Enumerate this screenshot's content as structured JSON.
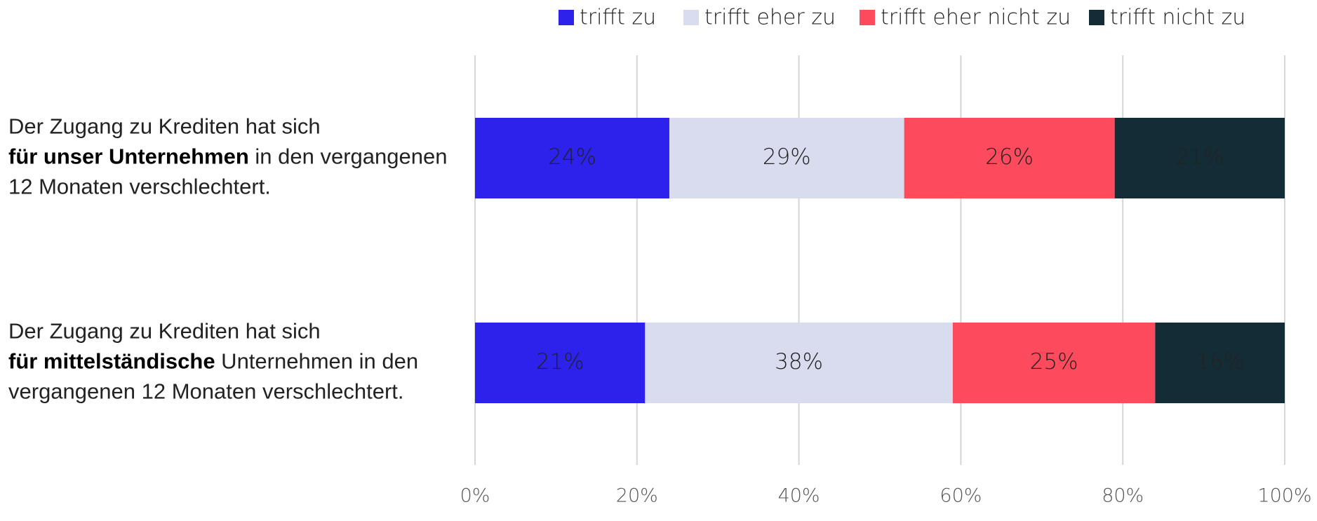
{
  "chart_data": {
    "type": "stacked_barh",
    "categories": [
      [
        [
          {
            "text": "Der Zugang zu Krediten hat sich"
          }
        ],
        [
          {
            "text": "für unser Unternehmen",
            "bold": true
          },
          {
            "text": " in den vergangenen"
          }
        ],
        [
          {
            "text": "12 Monaten verschlechtert."
          }
        ]
      ],
      [
        [
          {
            "text": "Der Zugang zu Krediten hat sich"
          }
        ],
        [
          {
            "text": "für mittelständische",
            "bold": true
          },
          {
            "text": " Unternehmen in den"
          }
        ],
        [
          {
            "text": "vergangenen 12 Monaten verschlechtert."
          }
        ]
      ]
    ],
    "series": [
      {
        "name": "trifft zu",
        "color": "#2c22eb",
        "values": [
          24,
          21
        ],
        "value_labels": [
          "24%",
          "21%"
        ]
      },
      {
        "name": "trifft eher zu",
        "color": "#d8dcee",
        "values": [
          29,
          38
        ],
        "value_labels": [
          "29%",
          "38%"
        ]
      },
      {
        "name": "trifft eher nicht zu",
        "color": "#fd4a5c",
        "values": [
          26,
          25
        ],
        "value_labels": [
          "26%",
          "25%"
        ]
      },
      {
        "name": "trifft nicht zu",
        "color": "#132c36",
        "values": [
          21,
          16
        ],
        "value_labels": [
          "21%",
          "16%"
        ]
      }
    ],
    "xlim": [
      0,
      100
    ],
    "xticks": [
      {
        "value": 0,
        "label": "0%"
      },
      {
        "value": 20,
        "label": "20%"
      },
      {
        "value": 40,
        "label": "40%"
      },
      {
        "value": 60,
        "label": "60%"
      },
      {
        "value": 80,
        "label": "80%"
      },
      {
        "value": 100,
        "label": "100%"
      }
    ],
    "grid": true,
    "legend": "top"
  }
}
